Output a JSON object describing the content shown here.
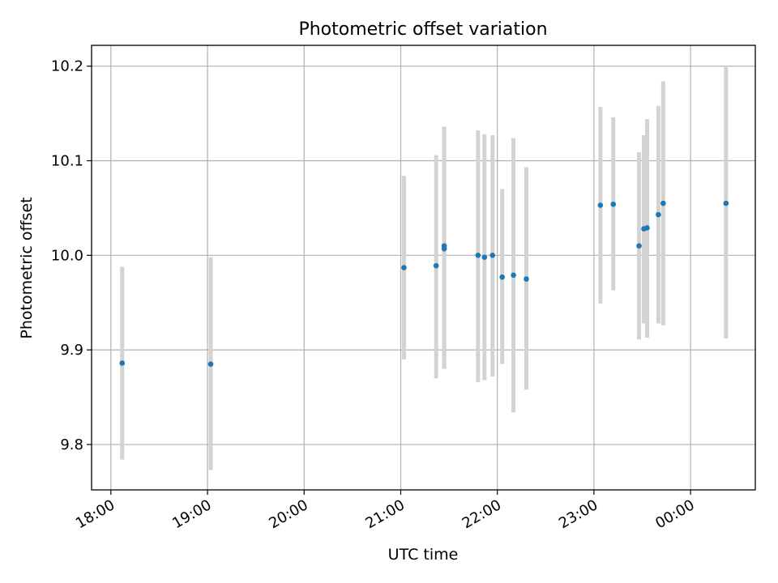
{
  "chart_data": {
    "type": "scatter",
    "title": "Photometric offset variation",
    "xlabel": "UTC time",
    "ylabel": "Photometric offset",
    "xlim_hours": [
      17.8,
      24.67
    ],
    "ylim": [
      9.752,
      10.222
    ],
    "x_ticks": [
      {
        "hour": 18,
        "label": "18:00"
      },
      {
        "hour": 19,
        "label": "19:00"
      },
      {
        "hour": 20,
        "label": "20:00"
      },
      {
        "hour": 21,
        "label": "21:00"
      },
      {
        "hour": 22,
        "label": "22:00"
      },
      {
        "hour": 23,
        "label": "23:00"
      },
      {
        "hour": 24,
        "label": "00:00"
      }
    ],
    "y_ticks": [
      {
        "value": 9.8,
        "label": "9.8"
      },
      {
        "value": 9.9,
        "label": "9.9"
      },
      {
        "value": 10.0,
        "label": "10.0"
      },
      {
        "value": 10.1,
        "label": "10.1"
      },
      {
        "value": 10.2,
        "label": "10.2"
      }
    ],
    "grid": true,
    "marker_color": "#1f77b4",
    "errorbar_color": "#d3d3d3",
    "points": [
      {
        "time": "18:07",
        "y": 9.886,
        "ylow": 9.784,
        "yhigh": 9.988
      },
      {
        "time": "19:02",
        "y": 9.885,
        "ylow": 9.773,
        "yhigh": 9.998
      },
      {
        "time": "21:02",
        "y": 9.987,
        "ylow": 9.89,
        "yhigh": 10.084
      },
      {
        "time": "21:22",
        "y": 9.989,
        "ylow": 9.87,
        "yhigh": 10.106
      },
      {
        "time": "21:27",
        "y": 10.01,
        "ylow": 9.88,
        "yhigh": 10.136
      },
      {
        "time": "21:27",
        "y": 10.007,
        "ylow": 9.88,
        "yhigh": 10.136
      },
      {
        "time": "21:48",
        "y": 10.0,
        "ylow": 9.866,
        "yhigh": 10.132
      },
      {
        "time": "21:52",
        "y": 9.998,
        "ylow": 9.868,
        "yhigh": 10.128
      },
      {
        "time": "21:57",
        "y": 10.0,
        "ylow": 9.872,
        "yhigh": 10.127
      },
      {
        "time": "22:03",
        "y": 9.977,
        "ylow": 9.885,
        "yhigh": 10.07
      },
      {
        "time": "22:10",
        "y": 9.979,
        "ylow": 9.834,
        "yhigh": 10.124
      },
      {
        "time": "22:18",
        "y": 9.975,
        "ylow": 9.858,
        "yhigh": 10.093
      },
      {
        "time": "23:04",
        "y": 10.053,
        "ylow": 9.949,
        "yhigh": 10.157
      },
      {
        "time": "23:12",
        "y": 10.054,
        "ylow": 9.963,
        "yhigh": 10.146
      },
      {
        "time": "23:28",
        "y": 10.01,
        "ylow": 9.911,
        "yhigh": 10.109
      },
      {
        "time": "23:31",
        "y": 10.028,
        "ylow": 9.928,
        "yhigh": 10.127
      },
      {
        "time": "23:33",
        "y": 10.029,
        "ylow": 9.913,
        "yhigh": 10.144
      },
      {
        "time": "23:40",
        "y": 10.043,
        "ylow": 9.928,
        "yhigh": 10.158
      },
      {
        "time": "23:43",
        "y": 10.055,
        "ylow": 9.926,
        "yhigh": 10.184
      },
      {
        "time": "00:22",
        "y": 10.055,
        "ylow": 9.912,
        "yhigh": 10.199
      }
    ]
  }
}
